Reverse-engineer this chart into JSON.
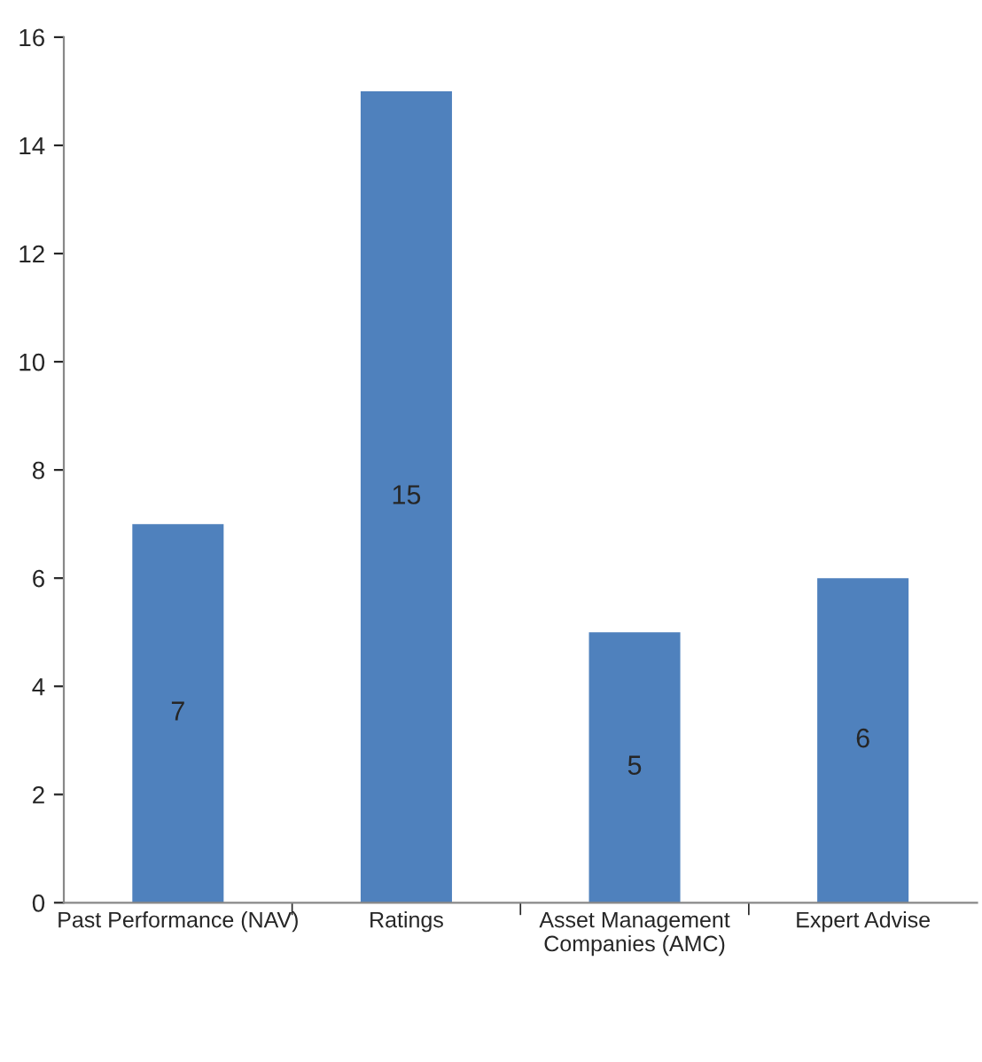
{
  "chart_data": {
    "type": "bar",
    "categories": [
      "Past Performance (NAV)",
      "Ratings",
      "Asset Management Companies (AMC)",
      "Expert Advise"
    ],
    "values": [
      7,
      15,
      5,
      6
    ],
    "color": "#4f81bd",
    "ylim": [
      0,
      16
    ],
    "yticks": [
      0,
      2,
      4,
      6,
      8,
      10,
      12,
      14,
      16
    ],
    "data_labels": true,
    "grid": false,
    "legend": false
  }
}
